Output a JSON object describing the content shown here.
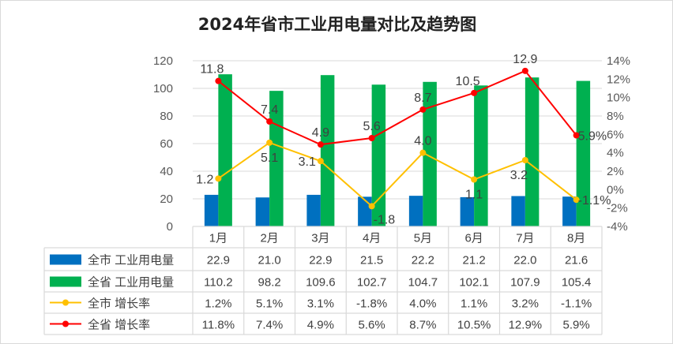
{
  "chart_data": {
    "type": "bar+line",
    "title": "2024年省市工业用电量对比及趋势图",
    "categories": [
      "1月",
      "2月",
      "3月",
      "4月",
      "5月",
      "6月",
      "7月",
      "8月"
    ],
    "y_left": {
      "range": [
        0,
        120
      ],
      "ticks": [
        "0",
        "20",
        "40",
        "60",
        "80",
        "100",
        "120"
      ]
    },
    "y_right": {
      "range": [
        -4,
        14
      ],
      "ticks": [
        "-4%",
        "-2%",
        "0%",
        "2%",
        "4%",
        "6%",
        "8%",
        "10%",
        "12%",
        "14%"
      ]
    },
    "grid": true,
    "legend_placement": "data-table",
    "series": [
      {
        "name": "全市 工业用电量",
        "type": "bar",
        "axis": "left",
        "color": "#0070c0",
        "values": [
          22.9,
          21.0,
          22.9,
          21.5,
          22.2,
          21.2,
          22.0,
          21.6
        ],
        "table": [
          "22.9",
          "21.0",
          "22.9",
          "21.5",
          "22.2",
          "21.2",
          "22.0",
          "21.6"
        ]
      },
      {
        "name": "全省 工业用电量",
        "type": "bar",
        "axis": "left",
        "color": "#00b050",
        "values": [
          110.2,
          98.2,
          109.6,
          102.7,
          104.7,
          102.1,
          107.9,
          105.4
        ],
        "table": [
          "110.2",
          "98.2",
          "109.6",
          "102.7",
          "104.7",
          "102.1",
          "107.9",
          "105.4"
        ]
      },
      {
        "name": "全市 增长率",
        "type": "line",
        "axis": "right",
        "color": "#ffc000",
        "values": [
          1.2,
          5.1,
          3.1,
          -1.8,
          4.0,
          1.1,
          3.2,
          -1.1
        ],
        "labels": [
          "1.2",
          "5.1",
          "3.1",
          "-1.8",
          "4.0",
          "1.1",
          "3.2",
          "-1.1%"
        ],
        "table": [
          "1.2%",
          "5.1%",
          "3.1%",
          "-1.8%",
          "4.0%",
          "1.1%",
          "3.2%",
          "-1.1%"
        ]
      },
      {
        "name": "全省 增长率",
        "type": "line",
        "axis": "right",
        "color": "#ff0000",
        "values": [
          11.8,
          7.4,
          4.9,
          5.6,
          8.7,
          10.5,
          12.9,
          5.9
        ],
        "labels": [
          "11.8",
          "7.4",
          "4.9",
          "5.6",
          "8.7",
          "10.5",
          "12.9",
          "5.9%"
        ],
        "table": [
          "11.8%",
          "7.4%",
          "4.9%",
          "5.6%",
          "8.7%",
          "10.5%",
          "12.9%",
          "5.9%"
        ]
      }
    ]
  }
}
